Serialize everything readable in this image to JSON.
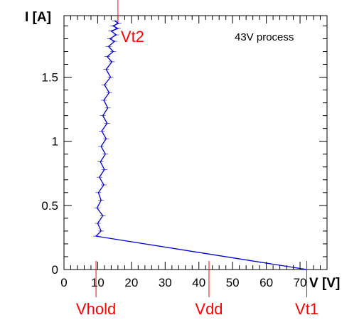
{
  "chart_data": {
    "type": "line",
    "title": "",
    "xlabel": "V [V]",
    "ylabel": "I [A]",
    "xlim": [
      0,
      78
    ],
    "ylim": [
      0,
      1.98
    ],
    "x_ticks": [
      0,
      10,
      20,
      30,
      40,
      50,
      60,
      70
    ],
    "y_ticks": [
      0,
      0.5,
      1,
      1.5
    ],
    "x_tick_labels": [
      "0",
      "10",
      "20",
      "30",
      "40",
      "50",
      "60",
      "70"
    ],
    "y_tick_labels": [
      "0",
      "0.5",
      "1",
      "1.5"
    ],
    "grid": false,
    "annotation": "43V process",
    "series": [
      {
        "color": "#0000cc",
        "x": [
          72,
          9.5,
          11,
          10,
          11.5,
          9.8,
          11,
          10.2,
          11.8,
          10.5,
          12,
          10.8,
          12.3,
          11,
          12.5,
          11.2,
          12.8,
          11.5,
          13,
          11.8,
          13.4,
          12,
          13.8,
          12.5,
          14.2,
          12.8,
          14.6,
          13.2,
          15,
          13.6,
          15.5,
          14,
          16,
          14.5,
          16.2,
          15
        ],
        "y": [
          0,
          0.26,
          0.3,
          0.36,
          0.42,
          0.48,
          0.54,
          0.6,
          0.66,
          0.72,
          0.78,
          0.84,
          0.9,
          0.96,
          1.02,
          1.08,
          1.14,
          1.2,
          1.26,
          1.32,
          1.38,
          1.44,
          1.5,
          1.56,
          1.62,
          1.66,
          1.7,
          1.74,
          1.78,
          1.8,
          1.83,
          1.86,
          1.88,
          1.9,
          1.92,
          1.94
        ]
      }
    ],
    "markers": [
      {
        "label": "Vt2",
        "x": 16,
        "y": 1.92,
        "color": "#ff0000"
      },
      {
        "label": "Vhold",
        "x": 9.5,
        "color": "#ff0000"
      },
      {
        "label": "Vdd",
        "x": 43,
        "color": "#ff0000"
      },
      {
        "label": "Vt1",
        "x": 72,
        "color": "#ff0000"
      }
    ]
  }
}
